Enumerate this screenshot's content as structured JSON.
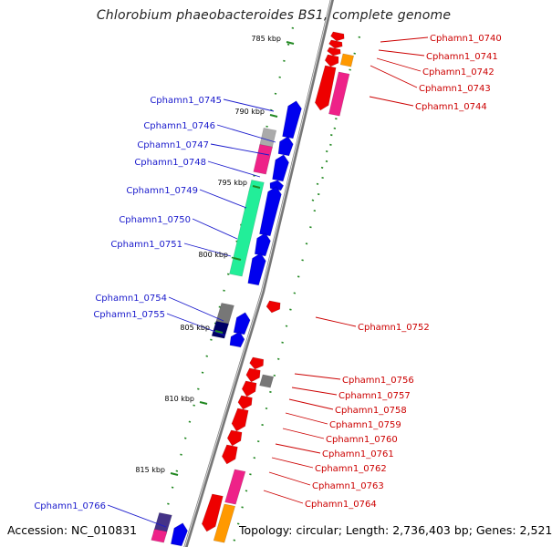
{
  "title": "Chlorobium phaeobacteroides BS1, complete genome",
  "footer": {
    "accession": "Accession: NC_010831",
    "topology": "Topology: circular; Length: 2,736,403 bp; Genes: 2,521"
  },
  "scale_labels": [
    "785 kbp",
    "790 kbp",
    "795 kbp",
    "800 kbp",
    "805 kbp",
    "810 kbp",
    "815 kbp"
  ],
  "labels_forward": [
    "Cphamn1_0745",
    "Cphamn1_0746",
    "Cphamn1_0747",
    "Cphamn1_0748",
    "Cphamn1_0749",
    "Cphamn1_0750",
    "Cphamn1_0751",
    "Cphamn1_0754",
    "Cphamn1_0755",
    "Cphamn1_0766"
  ],
  "labels_reverse": [
    "Cphamn1_0740",
    "Cphamn1_0741",
    "Cphamn1_0742",
    "Cphamn1_0743",
    "Cphamn1_0744",
    "Cphamn1_0752",
    "Cphamn1_0756",
    "Cphamn1_0757",
    "Cphamn1_0758",
    "Cphamn1_0759",
    "Cphamn1_0760",
    "Cphamn1_0761",
    "Cphamn1_0762",
    "Cphamn1_0763",
    "Cphamn1_0764"
  ],
  "colors": {
    "forward_label": "#1a1acc",
    "reverse_label": "#cc0000",
    "forward_gene": "#0000ee",
    "reverse_gene": "#ee0000",
    "green_gene": "#22ee99",
    "magenta_gene": "#ee2288",
    "orange_gene": "#ff9900",
    "grey_gene": "#777777",
    "light_grey_gene": "#aaaaaa",
    "navy_gene": "#000066",
    "purple_gene": "#443388",
    "backbone": "#777777",
    "tick": "#228822"
  }
}
